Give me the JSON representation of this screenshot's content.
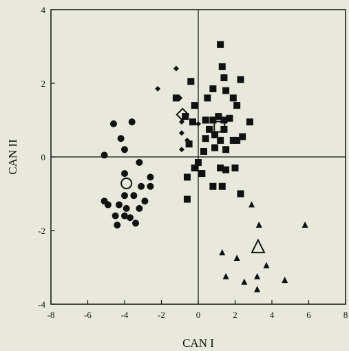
{
  "chart_data": {
    "type": "scatter",
    "xlabel": "CAN I",
    "ylabel": "CAN II",
    "xlim": [
      -8,
      8
    ],
    "ylim": [
      -4,
      4
    ],
    "xticks": [
      -8,
      -6,
      -4,
      -2,
      0,
      2,
      4,
      6,
      8
    ],
    "yticks": [
      -4,
      -2,
      0,
      2,
      4
    ],
    "grid": false,
    "zero_lines": true,
    "colors": {
      "background": "#e8e8dc",
      "marker": "#111111"
    },
    "series": [
      {
        "marker": "circle",
        "points": [
          [
            -4.6,
            0.9
          ],
          [
            -3.6,
            0.95
          ],
          [
            -4.2,
            0.5
          ],
          [
            -4.0,
            0.2
          ],
          [
            -5.1,
            0.05
          ],
          [
            -3.2,
            -0.15
          ],
          [
            -4.0,
            -0.45
          ],
          [
            -2.6,
            -0.55
          ],
          [
            -3.1,
            -0.8
          ],
          [
            -2.6,
            -0.8
          ],
          [
            -4.0,
            -1.05
          ],
          [
            -3.5,
            -1.05
          ],
          [
            -5.1,
            -1.2
          ],
          [
            -4.9,
            -1.3
          ],
          [
            -4.3,
            -1.3
          ],
          [
            -2.9,
            -1.2
          ],
          [
            -3.2,
            -1.4
          ],
          [
            -3.9,
            -1.4
          ],
          [
            -4.0,
            -1.6
          ],
          [
            -4.5,
            -1.6
          ],
          [
            -3.7,
            -1.65
          ],
          [
            -4.4,
            -1.85
          ],
          [
            -3.4,
            -1.8
          ]
        ],
        "centroid": [
          -3.9,
          -0.72
        ]
      },
      {
        "marker": "diamond",
        "points": [
          [
            -1.2,
            2.4
          ],
          [
            -2.2,
            1.85
          ],
          [
            -1.0,
            1.6
          ],
          [
            -0.9,
            0.95
          ],
          [
            -0.9,
            0.65
          ],
          [
            -0.6,
            0.45
          ],
          [
            -0.9,
            0.2
          ],
          [
            0.0,
            0.9
          ]
        ],
        "centroid": [
          -0.85,
          1.15
        ]
      },
      {
        "marker": "square",
        "points": [
          [
            1.2,
            3.05
          ],
          [
            1.3,
            2.45
          ],
          [
            1.4,
            2.15
          ],
          [
            -0.4,
            2.05
          ],
          [
            0.8,
            1.85
          ],
          [
            1.5,
            1.8
          ],
          [
            2.3,
            2.1
          ],
          [
            -1.2,
            1.6
          ],
          [
            0.5,
            1.6
          ],
          [
            1.9,
            1.6
          ],
          [
            -0.2,
            1.4
          ],
          [
            2.1,
            1.4
          ],
          [
            -0.7,
            1.1
          ],
          [
            1.1,
            1.1
          ],
          [
            1.7,
            1.05
          ],
          [
            0.4,
            1.0
          ],
          [
            0.8,
            1.0
          ],
          [
            1.4,
            1.0
          ],
          [
            -0.3,
            0.95
          ],
          [
            2.8,
            0.95
          ],
          [
            0.6,
            0.75
          ],
          [
            1.4,
            0.75
          ],
          [
            0.9,
            0.6
          ],
          [
            2.4,
            0.55
          ],
          [
            0.4,
            0.5
          ],
          [
            1.2,
            0.45
          ],
          [
            1.9,
            0.45
          ],
          [
            2.1,
            0.45
          ],
          [
            -0.5,
            0.35
          ],
          [
            0.9,
            0.25
          ],
          [
            1.5,
            0.2
          ],
          [
            0.3,
            0.15
          ],
          [
            0.0,
            -0.15
          ],
          [
            -0.2,
            -0.3
          ],
          [
            1.2,
            -0.3
          ],
          [
            1.5,
            -0.35
          ],
          [
            2.0,
            -0.3
          ],
          [
            0.8,
            -0.8
          ],
          [
            1.3,
            -0.8
          ],
          [
            -0.6,
            -0.55
          ],
          [
            0.2,
            -0.45
          ],
          [
            2.3,
            -1.0
          ],
          [
            -0.6,
            -1.15
          ]
        ],
        "centroid": [
          1.15,
          0.82
        ]
      },
      {
        "marker": "triangle",
        "points": [
          [
            2.9,
            -1.3
          ],
          [
            3.3,
            -1.85
          ],
          [
            5.8,
            -1.85
          ],
          [
            1.3,
            -2.6
          ],
          [
            2.1,
            -2.75
          ],
          [
            3.7,
            -2.95
          ],
          [
            1.5,
            -3.25
          ],
          [
            3.2,
            -3.25
          ],
          [
            2.5,
            -3.4
          ],
          [
            4.7,
            -3.35
          ],
          [
            3.2,
            -3.6
          ]
        ],
        "centroid": [
          3.25,
          -2.45
        ]
      }
    ]
  }
}
